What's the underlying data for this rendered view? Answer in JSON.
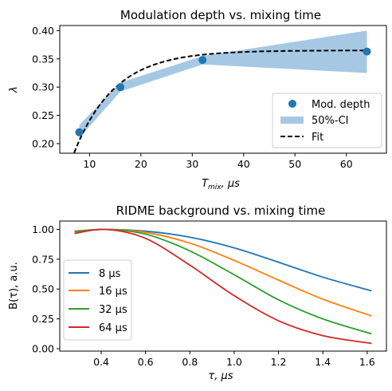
{
  "chart_data": [
    {
      "type": "scatter",
      "title": "Modulation depth vs. mixing time",
      "xlabel_main": "T",
      "xlabel_sub": "mix",
      "xlabel_unit": ", μs",
      "ylabel": "λ",
      "xlim": [
        4.2,
        67.8
      ],
      "ylim": [
        0.183,
        0.409
      ],
      "xticks": [
        10,
        20,
        30,
        40,
        50,
        60
      ],
      "yticks": [
        0.2,
        0.25,
        0.3,
        0.35,
        0.4
      ],
      "ytick_labels": [
        "0.20",
        "0.25",
        "0.30",
        "0.35",
        "0.40"
      ],
      "grid": false,
      "legend_position": "lower-right",
      "series": [
        {
          "name": "Mod. depth",
          "kind": "points",
          "color": "#1f77b4",
          "x": [
            8,
            16,
            32,
            64
          ],
          "y": [
            0.22,
            0.3,
            0.348,
            0.363
          ]
        },
        {
          "name": "50%-CI",
          "kind": "band",
          "color": "#a6c8e4",
          "x": [
            8,
            16,
            32,
            64
          ],
          "lower": [
            0.21,
            0.292,
            0.34,
            0.325
          ],
          "upper": [
            0.233,
            0.308,
            0.355,
            0.4
          ]
        },
        {
          "name": "Fit",
          "kind": "dashed-line",
          "color": "#000000",
          "model": {
            "type": "exp_saturation",
            "a": 0.365,
            "b": 0.44,
            "tau": 7.9
          },
          "x_range": [
            7.0,
            64.0
          ]
        }
      ]
    },
    {
      "type": "line",
      "title": "RIDME background vs. mixing time",
      "xlabel_main": "τ",
      "xlabel_unit": ", μs",
      "ylabel": "B(τ), a.u.",
      "xlim": [
        0.213,
        1.687
      ],
      "ylim": [
        -0.02,
        1.07
      ],
      "xticks": [
        0.4,
        0.6,
        0.8,
        1.0,
        1.2,
        1.4,
        1.6
      ],
      "xtick_labels": [
        "0.4",
        "0.6",
        "0.8",
        "1.0",
        "1.2",
        "1.4",
        "1.6"
      ],
      "yticks": [
        0.0,
        0.25,
        0.5,
        0.75,
        1.0
      ],
      "ytick_labels": [
        "0.00",
        "0.25",
        "0.50",
        "0.75",
        "1.00"
      ],
      "grid": false,
      "legend_position": "lower-left",
      "x": [
        0.28,
        0.42,
        0.6,
        0.8,
        1.0,
        1.2,
        1.4,
        1.62
      ],
      "series": [
        {
          "name": "8 μs",
          "color": "#1f77b4",
          "values": [
            0.985,
            1.0,
            0.985,
            0.935,
            0.845,
            0.725,
            0.6,
            0.485
          ]
        },
        {
          "name": "16 μs",
          "color": "#ff7f0e",
          "values": [
            0.985,
            1.0,
            0.975,
            0.885,
            0.74,
            0.575,
            0.415,
            0.275
          ]
        },
        {
          "name": "32 μs",
          "color": "#2ca02c",
          "values": [
            0.98,
            1.0,
            0.96,
            0.82,
            0.62,
            0.41,
            0.25,
            0.125
          ]
        },
        {
          "name": "64 μs",
          "color": "#d62728",
          "values": [
            0.965,
            1.0,
            0.925,
            0.7,
            0.445,
            0.235,
            0.11,
            0.045
          ]
        }
      ]
    }
  ]
}
